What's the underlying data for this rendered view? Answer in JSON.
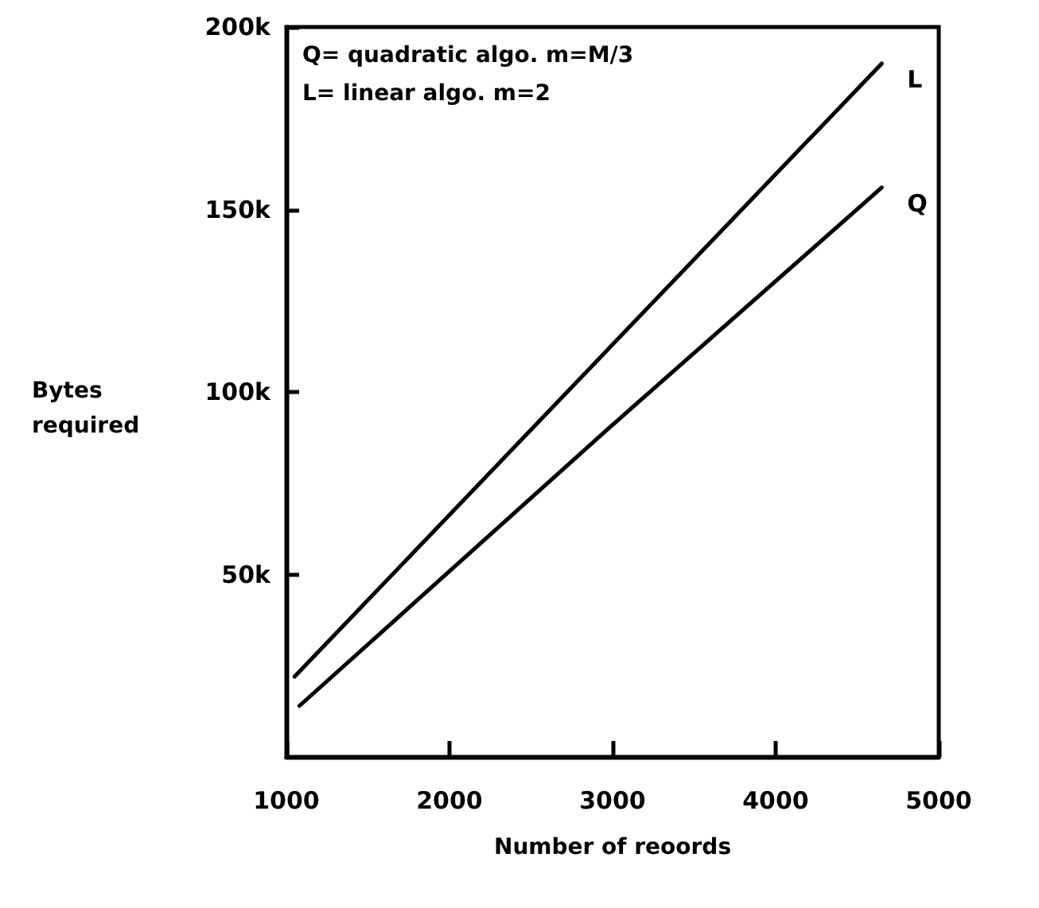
{
  "chart_data": {
    "type": "line",
    "xlabel": "Number of reoords",
    "ylabel": "Bytes required",
    "annotations": [
      "Q= quadratic algo. m=M/3",
      "L= linear algo. m=2"
    ],
    "x": [
      1050,
      2850,
      4650
    ],
    "series": [
      {
        "name": "L",
        "color": "#000000",
        "values": [
          22000,
          106000,
          190000
        ]
      },
      {
        "name": "Q",
        "color": "#000000",
        "x": [
          1080,
          3000,
          4650
        ],
        "values": [
          14000,
          91000,
          156000
        ]
      }
    ],
    "xlim": [
      1000,
      5000
    ],
    "xticks": [
      1000,
      2000,
      3000,
      4000,
      5000
    ],
    "ylim": [
      0,
      200000
    ],
    "yticks": [
      {
        "value": 50000,
        "label": "50k"
      },
      {
        "value": 100000,
        "label": "100k"
      },
      {
        "value": 150000,
        "label": "150k"
      },
      {
        "value": 200000,
        "label": "200k"
      }
    ],
    "grid": false,
    "legend": false,
    "marker": "none",
    "line_style": "solid"
  }
}
